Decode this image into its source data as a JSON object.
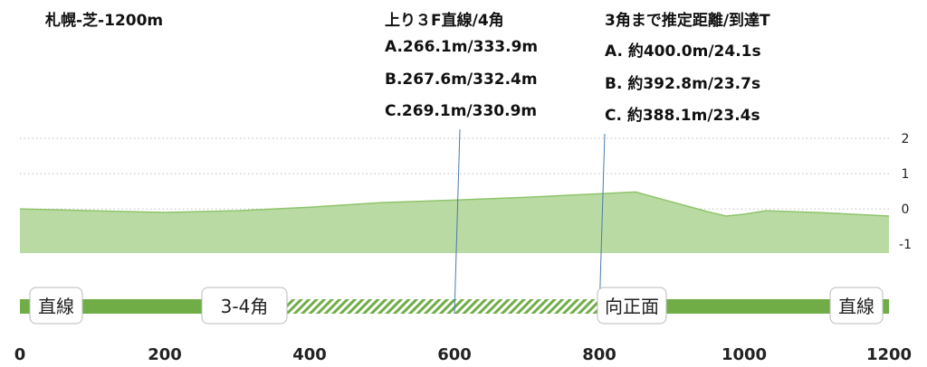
{
  "chart_data": {
    "type": "area",
    "title": "札幌-芝-1200m",
    "xlabel": "",
    "ylabel": "",
    "xlim": [
      0,
      1200
    ],
    "ylim": [
      -1.25,
      2
    ],
    "x_ticks": [
      "0",
      "200",
      "400",
      "600",
      "800",
      "1000",
      "1200"
    ],
    "y_ticks": [
      "2",
      "1",
      "0",
      "-1"
    ],
    "grid": "horizontal-dotted",
    "legend": "none",
    "series": [
      {
        "x": [
          0,
          100,
          200,
          300,
          400,
          500,
          600,
          700,
          800,
          850,
          900,
          950,
          975,
          1000,
          1030,
          1100,
          1150,
          1200
        ],
        "y": [
          0.0,
          -0.05,
          -0.1,
          -0.05,
          0.05,
          0.18,
          0.25,
          0.33,
          0.43,
          0.48,
          0.2,
          -0.08,
          -0.2,
          -0.15,
          -0.05,
          -0.1,
          -0.15,
          -0.2
        ]
      }
    ],
    "markers": [
      {
        "x": 600,
        "label_lines": [
          "上り３F直線/4角",
          "A.266.1m/333.9m",
          "B.267.6m/332.4m",
          "C.269.1m/330.9m"
        ]
      },
      {
        "x": 800,
        "label_lines": [
          "3角まで推定距離/到達T",
          "A. 約400.0m/24.1s",
          "B. 約392.8m/23.7s",
          "C. 約388.1m/23.4s"
        ]
      }
    ],
    "track_segments": [
      {
        "type": "solid",
        "start": 0,
        "end": 350
      },
      {
        "type": "hatched",
        "start": 350,
        "end": 800
      },
      {
        "type": "solid",
        "start": 800,
        "end": 1200
      }
    ],
    "track_labels": [
      {
        "text": "直線",
        "x": 50
      },
      {
        "text": "3-4角",
        "x": 310
      },
      {
        "text": "向正面",
        "x": 845
      },
      {
        "text": "直線",
        "x": 1155
      }
    ],
    "colors": {
      "area_fill": "#b9dba3",
      "area_line": "#8fc46b",
      "track_green": "#70ad47",
      "marker_line": "#4a7ab0",
      "grid": "#bfbfbf"
    }
  }
}
